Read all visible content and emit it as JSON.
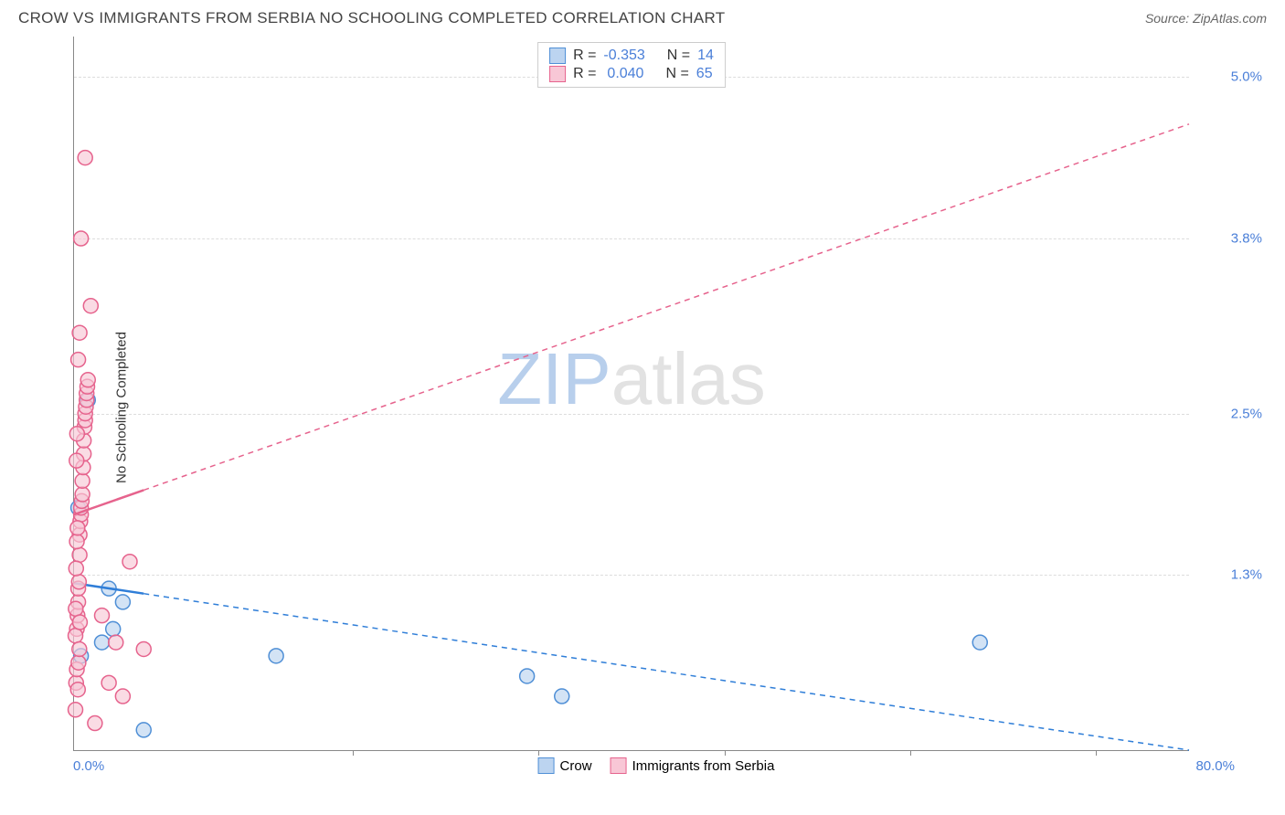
{
  "header": {
    "title": "CROW VS IMMIGRANTS FROM SERBIA NO SCHOOLING COMPLETED CORRELATION CHART",
    "source": "Source: ZipAtlas.com"
  },
  "chart": {
    "type": "scatter",
    "ylabel": "No Schooling Completed",
    "watermark_a": "ZIP",
    "watermark_b": "atlas",
    "xlim": [
      0,
      80
    ],
    "ylim": [
      0,
      5.3
    ],
    "x_axis_min_label": "0.0%",
    "x_axis_max_label": "80.0%",
    "y_ticks": [
      {
        "v": 1.3,
        "label": "1.3%"
      },
      {
        "v": 2.5,
        "label": "2.5%"
      },
      {
        "v": 3.8,
        "label": "3.8%"
      },
      {
        "v": 5.0,
        "label": "5.0%"
      }
    ],
    "x_tick_positions": [
      20,
      33.3,
      46.7,
      60,
      73.3
    ],
    "background_color": "#ffffff",
    "grid_color": "#dddddd",
    "axis_color": "#888888",
    "marker_radius": 8,
    "marker_stroke_width": 1.5,
    "line_width": 2.5,
    "dash_pattern": "6,5",
    "series": [
      {
        "name": "Crow",
        "fill_color": "#bcd4f0",
        "stroke_color": "#4f8fd6",
        "line_color": "#2f7ed8",
        "r_value": "-0.353",
        "n_value": "14",
        "trend": {
          "x1": 0,
          "y1": 1.24,
          "x2": 80,
          "y2": 0.0,
          "solid_until": 5
        },
        "points": [
          {
            "x": 0.3,
            "y": 1.8
          },
          {
            "x": 0.5,
            "y": 0.7
          },
          {
            "x": 1.0,
            "y": 2.6
          },
          {
            "x": 2.0,
            "y": 0.8
          },
          {
            "x": 2.5,
            "y": 1.2
          },
          {
            "x": 2.8,
            "y": 0.9
          },
          {
            "x": 3.5,
            "y": 1.1
          },
          {
            "x": 5.0,
            "y": 0.15
          },
          {
            "x": 14.5,
            "y": 0.7
          },
          {
            "x": 32.5,
            "y": 0.55
          },
          {
            "x": 35.0,
            "y": 0.4
          },
          {
            "x": 65.0,
            "y": 0.8
          }
        ]
      },
      {
        "name": "Immigrants from Serbia",
        "fill_color": "#f8c7d6",
        "stroke_color": "#e6638d",
        "line_color": "#e6638d",
        "r_value": "0.040",
        "n_value": "65",
        "trend": {
          "x1": 0,
          "y1": 1.75,
          "x2": 80,
          "y2": 4.65,
          "solid_until": 5
        },
        "points": [
          {
            "x": 0.1,
            "y": 0.3
          },
          {
            "x": 0.15,
            "y": 0.5
          },
          {
            "x": 0.2,
            "y": 0.6
          },
          {
            "x": 0.2,
            "y": 0.9
          },
          {
            "x": 0.25,
            "y": 1.0
          },
          {
            "x": 0.3,
            "y": 1.1
          },
          {
            "x": 0.3,
            "y": 1.2
          },
          {
            "x": 0.35,
            "y": 1.25
          },
          {
            "x": 0.4,
            "y": 1.45
          },
          {
            "x": 0.4,
            "y": 1.6
          },
          {
            "x": 0.45,
            "y": 1.7
          },
          {
            "x": 0.5,
            "y": 1.75
          },
          {
            "x": 0.5,
            "y": 1.8
          },
          {
            "x": 0.55,
            "y": 1.85
          },
          {
            "x": 0.6,
            "y": 1.9
          },
          {
            "x": 0.6,
            "y": 2.0
          },
          {
            "x": 0.65,
            "y": 2.1
          },
          {
            "x": 0.7,
            "y": 2.2
          },
          {
            "x": 0.7,
            "y": 2.3
          },
          {
            "x": 0.75,
            "y": 2.4
          },
          {
            "x": 0.8,
            "y": 2.45
          },
          {
            "x": 0.8,
            "y": 2.5
          },
          {
            "x": 0.85,
            "y": 2.55
          },
          {
            "x": 0.9,
            "y": 2.6
          },
          {
            "x": 0.9,
            "y": 2.65
          },
          {
            "x": 0.95,
            "y": 2.7
          },
          {
            "x": 1.0,
            "y": 2.75
          },
          {
            "x": 0.3,
            "y": 2.9
          },
          {
            "x": 0.4,
            "y": 3.1
          },
          {
            "x": 1.2,
            "y": 3.3
          },
          {
            "x": 0.5,
            "y": 3.8
          },
          {
            "x": 0.8,
            "y": 4.4
          },
          {
            "x": 2.0,
            "y": 1.0
          },
          {
            "x": 2.5,
            "y": 0.5
          },
          {
            "x": 3.0,
            "y": 0.8
          },
          {
            "x": 3.5,
            "y": 0.4
          },
          {
            "x": 4.0,
            "y": 1.4
          },
          {
            "x": 5.0,
            "y": 0.75
          },
          {
            "x": 1.5,
            "y": 0.2
          },
          {
            "x": 0.15,
            "y": 1.35
          },
          {
            "x": 0.2,
            "y": 1.55
          },
          {
            "x": 0.25,
            "y": 1.65
          },
          {
            "x": 0.1,
            "y": 0.85
          },
          {
            "x": 0.12,
            "y": 1.05
          },
          {
            "x": 0.18,
            "y": 2.15
          },
          {
            "x": 0.22,
            "y": 2.35
          },
          {
            "x": 0.28,
            "y": 0.45
          },
          {
            "x": 0.32,
            "y": 0.65
          },
          {
            "x": 0.38,
            "y": 0.75
          },
          {
            "x": 0.42,
            "y": 0.95
          }
        ]
      }
    ],
    "legend_top_labels": {
      "r_label": "R =",
      "n_label": "N ="
    },
    "legend_bottom": [
      {
        "label": "Crow",
        "fill": "#bcd4f0",
        "stroke": "#4f8fd6"
      },
      {
        "label": "Immigrants from Serbia",
        "fill": "#f8c7d6",
        "stroke": "#e6638d"
      }
    ]
  }
}
